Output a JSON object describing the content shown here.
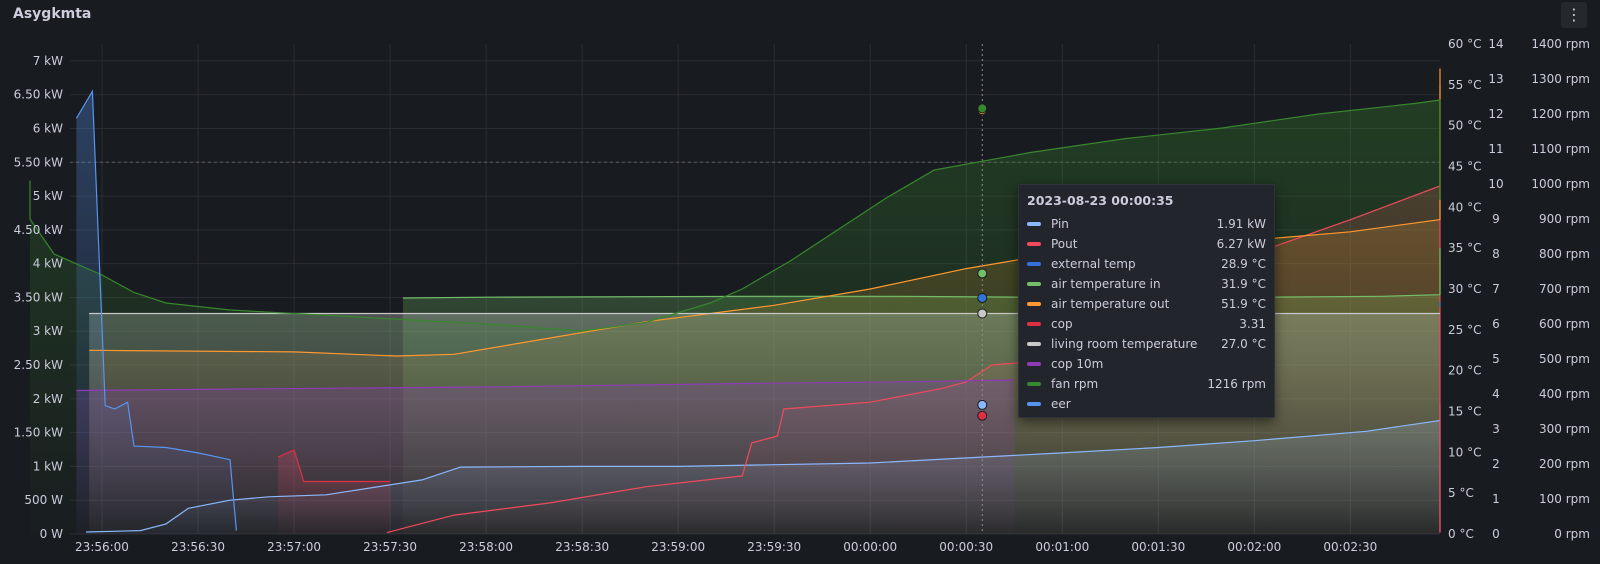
{
  "panel": {
    "title": "Asygkmta",
    "menu_icon": "kebab-menu-icon"
  },
  "chart_data": {
    "type": "line",
    "title": "Asygkmta",
    "x_ticks": [
      "23:56:00",
      "23:56:30",
      "23:57:00",
      "23:57:30",
      "23:58:00",
      "23:58:30",
      "23:59:00",
      "23:59:30",
      "00:00:00",
      "00:00:30",
      "00:01:00",
      "00:01:30",
      "00:02:00",
      "00:02:30"
    ],
    "x_range": [
      "23:55:50",
      "00:02:58"
    ],
    "y_left": {
      "unit": "kW",
      "min": 0,
      "max": 7.25,
      "ticks": [
        "0 W",
        "500 W",
        "1 kW",
        "1.50 kW",
        "2 kW",
        "2.50 kW",
        "3 kW",
        "3.50 kW",
        "4 kW",
        "4.50 kW",
        "5 kW",
        "5.50 kW",
        "6 kW",
        "6.50 kW",
        "7 kW"
      ]
    },
    "y_temp": {
      "unit": "°C",
      "min": 0,
      "max": 60,
      "ticks": [
        "0 °C",
        "5 °C",
        "10 °C",
        "15 °C",
        "20 °C",
        "25 °C",
        "30 °C",
        "35 °C",
        "40 °C",
        "45 °C",
        "50 °C",
        "55 °C",
        "60 °C"
      ]
    },
    "y_cop": {
      "min": 0,
      "max": 14,
      "ticks": [
        "0",
        "1",
        "2",
        "3",
        "4",
        "5",
        "6",
        "7",
        "8",
        "9",
        "10",
        "11",
        "12",
        "13",
        "14"
      ]
    },
    "y_rpm": {
      "unit": "rpm",
      "min": 0,
      "max": 1400,
      "ticks": [
        "0 rpm",
        "100 rpm",
        "200 rpm",
        "300 rpm",
        "400 rpm",
        "500 rpm",
        "600 rpm",
        "700 rpm",
        "800 rpm",
        "900 rpm",
        "1000 rpm",
        "1100 rpm",
        "1200 rpm",
        "1300 rpm",
        "1400 rpm"
      ]
    },
    "grid": true,
    "legend_placement": "none",
    "cursor_time": "00:00:35",
    "series": [
      {
        "name": "Pin",
        "color": "#8ab8ff",
        "axis": "kW",
        "points": [
          [
            -5,
            0.03
          ],
          [
            12,
            0.05
          ],
          [
            20,
            0.15
          ],
          [
            27,
            0.38
          ],
          [
            40,
            0.5
          ],
          [
            52,
            0.55
          ],
          [
            70,
            0.58
          ],
          [
            100,
            0.8
          ],
          [
            112,
            0.99
          ],
          [
            150,
            1.0
          ],
          [
            180,
            1.0
          ],
          [
            240,
            1.05
          ],
          [
            300,
            1.2
          ],
          [
            330,
            1.28
          ],
          [
            360,
            1.38
          ],
          [
            395,
            1.52
          ],
          [
            440,
            1.68
          ],
          [
            470,
            1.8
          ],
          [
            515,
            1.91
          ],
          [
            540,
            1.6
          ],
          [
            570,
            1.25
          ],
          [
            600,
            1.18
          ],
          [
            630,
            1.12
          ],
          [
            700,
            1.13
          ],
          [
            735,
            1.15
          ],
          [
            747,
            0.55
          ],
          [
            755,
            0.05
          ],
          [
            768,
            0.03
          ]
        ]
      },
      {
        "name": "Pout",
        "color": "#f2495c",
        "axis": "kW",
        "points": [
          [
            89,
            0.02
          ],
          [
            110,
            0.28
          ],
          [
            140,
            0.46
          ],
          [
            170,
            0.7
          ],
          [
            200,
            0.86
          ],
          [
            203,
            1.35
          ],
          [
            211,
            1.45
          ],
          [
            213,
            1.85
          ],
          [
            240,
            1.95
          ],
          [
            262,
            2.15
          ],
          [
            270,
            2.25
          ],
          [
            278,
            2.5
          ],
          [
            290,
            2.55
          ],
          [
            300,
            2.9
          ],
          [
            315,
            3.1
          ],
          [
            318,
            3.5
          ],
          [
            345,
            3.86
          ],
          [
            360,
            4.15
          ],
          [
            390,
            4.65
          ],
          [
            420,
            5.15
          ],
          [
            450,
            5.45
          ],
          [
            480,
            5.75
          ],
          [
            500,
            6.0
          ],
          [
            512,
            6.2
          ],
          [
            520,
            6.42
          ],
          [
            525,
            6.35
          ],
          [
            536,
            6.0
          ],
          [
            545,
            6.12
          ],
          [
            575,
            6.45
          ],
          [
            600,
            6.63
          ],
          [
            630,
            6.6
          ],
          [
            660,
            6.6
          ],
          [
            670,
            6.63
          ],
          [
            673,
            6.0
          ],
          [
            681,
            4.7
          ],
          [
            700,
            4.7
          ],
          [
            720,
            4.65
          ],
          [
            735,
            4.55
          ],
          [
            745,
            1.6
          ],
          [
            748,
            1.35
          ],
          [
            755,
            1.35
          ],
          [
            757,
            4.2
          ],
          [
            762,
            4.1
          ],
          [
            767,
            1.5
          ],
          [
            770,
            0.02
          ],
          [
            800,
            0.02
          ]
        ]
      },
      {
        "name": "external temp",
        "color": "#3274d9",
        "axis": "°C",
        "points": [
          [
            510,
            27.8
          ],
          [
            535,
            27.9
          ],
          [
            560,
            28.0
          ],
          [
            600,
            28.1
          ],
          [
            650,
            28.2
          ],
          [
            700,
            28.3
          ],
          [
            760,
            28.4
          ],
          [
            790,
            28.3
          ]
        ]
      },
      {
        "name": "air temperature in",
        "color": "#73bf69",
        "axis": "°C",
        "points": [
          [
            94,
            28.9
          ],
          [
            120,
            29.0
          ],
          [
            200,
            29.1
          ],
          [
            250,
            29.1
          ],
          [
            290,
            29.0
          ],
          [
            360,
            29.0
          ],
          [
            400,
            29.1
          ],
          [
            450,
            29.3
          ],
          [
            500,
            30.0
          ],
          [
            515,
            31.9
          ],
          [
            540,
            32.2
          ],
          [
            580,
            32.4
          ],
          [
            620,
            33.0
          ],
          [
            660,
            33.4
          ],
          [
            700,
            34.0
          ],
          [
            735,
            34.3
          ],
          [
            760,
            34.7
          ],
          [
            775,
            35.0
          ]
        ]
      },
      {
        "name": "air temperature out",
        "color": "#ff9830",
        "axis": "°C",
        "points": [
          [
            -4,
            22.5
          ],
          [
            60,
            22.3
          ],
          [
            92,
            21.8
          ],
          [
            110,
            22.0
          ],
          [
            140,
            24.0
          ],
          [
            170,
            26.0
          ],
          [
            210,
            28.0
          ],
          [
            240,
            30.0
          ],
          [
            270,
            32.5
          ],
          [
            300,
            34.5
          ],
          [
            330,
            35.5
          ],
          [
            360,
            36.0
          ],
          [
            390,
            37.0
          ],
          [
            420,
            38.5
          ],
          [
            460,
            40.0
          ],
          [
            490,
            43.5
          ],
          [
            510,
            47.0
          ],
          [
            520,
            50.0
          ],
          [
            530,
            51.0
          ],
          [
            550,
            51.5
          ],
          [
            575,
            54.0
          ],
          [
            600,
            55.0
          ],
          [
            650,
            55.5
          ],
          [
            700,
            56.0
          ],
          [
            730,
            56.5
          ],
          [
            745,
            57.0
          ],
          [
            765,
            57.0
          ],
          [
            790,
            55.0
          ],
          [
            800,
            52.5
          ]
        ]
      },
      {
        "name": "cop",
        "color": "#e02f44",
        "axis": "cop",
        "points": [
          [
            55,
            2.2
          ],
          [
            60,
            2.4
          ],
          [
            63,
            1.5
          ],
          [
            90,
            1.5
          ]
        ]
      },
      {
        "name": "living room temperature",
        "color": "#c8c8c8",
        "axis": "°C",
        "points": [
          [
            -4,
            27.0
          ],
          [
            100,
            27.0
          ],
          [
            200,
            27.0
          ],
          [
            300,
            27.0
          ],
          [
            400,
            27.0
          ],
          [
            500,
            27.0
          ],
          [
            600,
            27.0
          ],
          [
            700,
            27.0
          ],
          [
            800,
            27.0
          ]
        ]
      },
      {
        "name": "cop 10m",
        "color": "#8f3bb8",
        "axis": "cop",
        "points": [
          [
            -8,
            4.1
          ],
          [
            50,
            4.15
          ],
          [
            120,
            4.2
          ],
          [
            200,
            4.3
          ],
          [
            250,
            4.35
          ],
          [
            285,
            4.4
          ]
        ]
      },
      {
        "name": "fan rpm",
        "color": "#37872d",
        "axis": "rpm",
        "points": [
          [
            -34,
            1010
          ],
          [
            -25,
            900
          ],
          [
            -15,
            800
          ],
          [
            0,
            740
          ],
          [
            10,
            690
          ],
          [
            20,
            660
          ],
          [
            40,
            640
          ],
          [
            80,
            620
          ],
          [
            120,
            600
          ],
          [
            150,
            580
          ],
          [
            170,
            605
          ],
          [
            190,
            660
          ],
          [
            200,
            700
          ],
          [
            215,
            780
          ],
          [
            230,
            870
          ],
          [
            245,
            960
          ],
          [
            260,
            1040
          ],
          [
            290,
            1090
          ],
          [
            320,
            1130
          ],
          [
            350,
            1160
          ],
          [
            380,
            1200
          ],
          [
            410,
            1230
          ],
          [
            450,
            1240
          ],
          [
            480,
            1240
          ],
          [
            505,
            1230
          ],
          [
            525,
            1200
          ],
          [
            545,
            1165
          ],
          [
            575,
            1120
          ],
          [
            600,
            1055
          ],
          [
            630,
            1010
          ],
          [
            660,
            990
          ],
          [
            690,
            975
          ],
          [
            720,
            955
          ]
        ]
      },
      {
        "name": "eer",
        "color": "#5794f2",
        "axis": "kW",
        "points": [
          [
            -8,
            6.15
          ],
          [
            -3,
            6.55
          ],
          [
            1,
            1.9
          ],
          [
            4,
            1.85
          ],
          [
            8,
            1.95
          ],
          [
            10,
            1.3
          ],
          [
            20,
            1.28
          ],
          [
            30,
            1.2
          ],
          [
            40,
            1.1
          ],
          [
            42,
            0.05
          ]
        ]
      }
    ],
    "tooltip": {
      "time": "2023-08-23 00:00:35",
      "rows": [
        {
          "name": "Pin",
          "value": "1.91 kW",
          "color": "#8ab8ff"
        },
        {
          "name": "Pout",
          "value": "6.27 kW",
          "color": "#f2495c"
        },
        {
          "name": "external temp",
          "value": "28.9 °C",
          "color": "#3274d9"
        },
        {
          "name": "air temperature in",
          "value": "31.9 °C",
          "color": "#73bf69"
        },
        {
          "name": "air temperature out",
          "value": "51.9 °C",
          "color": "#ff9830"
        },
        {
          "name": "cop",
          "value": "3.31",
          "color": "#e02f44"
        },
        {
          "name": "living room temperature",
          "value": "27.0 °C",
          "color": "#c8c8c8"
        },
        {
          "name": "cop 10m",
          "value": "",
          "color": "#8f3bb8"
        },
        {
          "name": "fan rpm",
          "value": "1216 rpm",
          "color": "#37872d"
        },
        {
          "name": "eer",
          "value": "",
          "color": "#5794f2"
        }
      ]
    }
  }
}
